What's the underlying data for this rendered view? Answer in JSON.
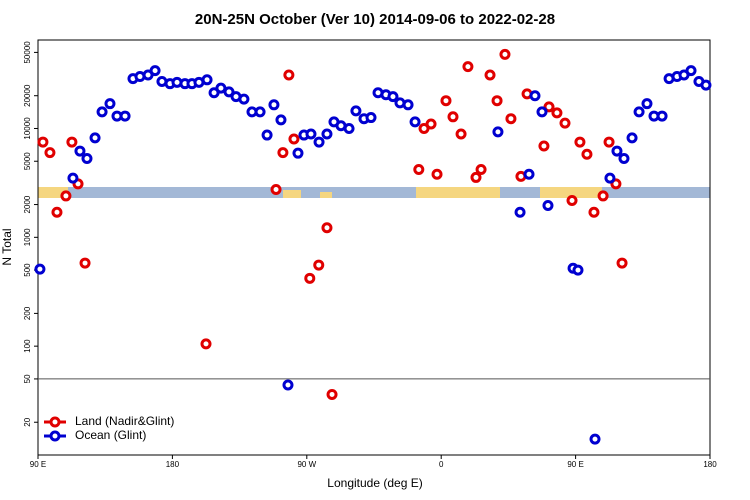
{
  "chart_data": {
    "type": "scatter",
    "title": "20N-25N October (Ver 10)   2014-09-06 to 2022-02-28",
    "x_label": "Longitude (deg E)",
    "y_label": "N Total",
    "xlim": [
      90,
      540
    ],
    "xticks": [
      {
        "value": 90,
        "label": "90 E"
      },
      180,
      {
        "value": 270,
        "label": "90 W"
      },
      {
        "value": 360,
        "label": "0"
      },
      {
        "value": 450,
        "label": "90 E"
      },
      {
        "value": 540,
        "label": "180"
      }
    ],
    "ylim": [
      10,
      65000
    ],
    "log_y": true,
    "yticks": [
      20,
      50,
      100,
      200,
      500,
      1000,
      2000,
      5000,
      10000,
      20000,
      50000
    ],
    "reference_line": 50,
    "legend": "bottom-left",
    "series": [
      {
        "name": "Land (Nadir&Glint)",
        "color": "#e00000",
        "x": [
          93.3,
          98,
          102.7,
          108.7,
          112.7,
          116.8,
          121.5,
          202.5,
          249.4,
          254,
          258,
          261.4,
          272,
          278,
          283.5,
          286.9,
          345,
          348.5,
          353.2,
          357.2,
          363.2,
          367.9,
          373.3,
          377.9,
          383.3,
          386.7,
          392.7,
          397.4,
          402.7,
          406.7,
          413.4,
          417.5,
          428.8,
          432.2,
          437.5,
          442.9,
          447.6,
          452.9,
          457.6,
          462.3,
          468.4,
          472.4,
          477,
          481.1
        ],
        "values": [
          7500,
          6000,
          1700,
          2400,
          7500,
          3100,
          580,
          105,
          2750,
          6000,
          31000,
          8000,
          420,
          556,
          1225,
          36,
          4200,
          10000,
          11000,
          3800,
          18000,
          12800,
          8900,
          37000,
          3550,
          4200,
          31000,
          18000,
          48000,
          12300,
          3630,
          20800,
          6900,
          15800,
          13900,
          11200,
          2180,
          7500,
          5800,
          1700,
          2400,
          7500,
          3100,
          580
        ]
      },
      {
        "name": "Ocean (Glint)",
        "color": "#0000d0",
        "x": [
          91.3,
          113.4,
          118.1,
          122.8,
          128.2,
          132.9,
          138.2,
          142.9,
          148.3,
          153.6,
          158.3,
          163.7,
          168.4,
          173,
          178.4,
          183.1,
          188.4,
          193.1,
          197.8,
          203.2,
          207.9,
          212.5,
          217.9,
          222.6,
          227.9,
          233.3,
          238.7,
          243.4,
          248,
          252.7,
          257.4,
          264.1,
          268.1,
          272.8,
          278.2,
          283.5,
          288.2,
          292.9,
          298.3,
          302.9,
          308.3,
          313,
          317.7,
          323,
          327.7,
          332.4,
          337.8,
          342.5,
          398,
          412.8,
          418.8,
          422.8,
          427.5,
          431.5,
          448.3,
          451.6,
          463,
          473,
          477.7,
          482.4,
          487.8,
          492.5,
          497.8,
          502.5,
          507.9,
          512.6,
          517.9,
          522.6,
          527.3,
          532.6,
          537.3
        ],
        "values": [
          510,
          3500,
          6200,
          5300,
          8200,
          14200,
          16900,
          13000,
          13000,
          28700,
          30000,
          31000,
          34000,
          27000,
          25800,
          26500,
          25800,
          25800,
          26500,
          28000,
          21300,
          23500,
          21700,
          19600,
          18600,
          14200,
          14200,
          8700,
          16500,
          12000,
          44,
          5930,
          8700,
          8900,
          7500,
          8900,
          11500,
          10600,
          10000,
          14500,
          12300,
          12600,
          21300,
          20400,
          19600,
          17200,
          16500,
          11500,
          9300,
          1700,
          3800,
          20000,
          14200,
          1960,
          520,
          500,
          14,
          3500,
          6200,
          5300,
          8200,
          14200,
          16900,
          13000,
          13000,
          28700,
          30000,
          31000,
          34000,
          27000,
          25000
        ]
      }
    ]
  }
}
